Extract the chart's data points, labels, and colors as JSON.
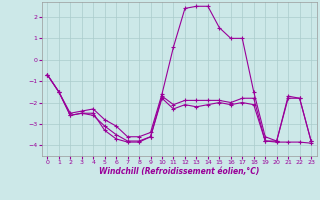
{
  "xlabel": "Windchill (Refroidissement éolien,°C)",
  "background_color": "#cce8e8",
  "grid_color": "#aacccc",
  "line_color": "#990099",
  "xlim": [
    -0.5,
    23.5
  ],
  "ylim": [
    -4.5,
    2.7
  ],
  "yticks": [
    -4,
    -3,
    -2,
    -1,
    0,
    1,
    2
  ],
  "xticks": [
    0,
    1,
    2,
    3,
    4,
    5,
    6,
    7,
    8,
    9,
    10,
    11,
    12,
    13,
    14,
    15,
    16,
    17,
    18,
    19,
    20,
    21,
    22,
    23
  ],
  "series1_x": [
    0,
    1,
    2,
    3,
    4,
    5,
    6,
    7,
    8,
    9,
    10,
    11,
    12,
    13,
    14,
    15,
    16,
    17,
    18,
    19,
    20,
    21,
    22,
    23
  ],
  "series1_y": [
    -0.7,
    -1.5,
    -2.6,
    -2.5,
    -2.6,
    -3.1,
    -3.5,
    -3.8,
    -3.8,
    -3.6,
    -1.7,
    -2.1,
    -1.9,
    -1.9,
    -1.9,
    -1.9,
    -2.0,
    -1.8,
    -1.8,
    -3.8,
    -3.8,
    -1.8,
    -1.8,
    -3.8
  ],
  "series2_x": [
    0,
    1,
    2,
    3,
    4,
    5,
    6,
    7,
    8,
    9,
    10,
    11,
    12,
    13,
    14,
    15,
    16,
    17,
    18,
    19,
    20,
    21,
    22,
    23
  ],
  "series2_y": [
    -0.7,
    -1.5,
    -2.6,
    -2.5,
    -2.5,
    -3.3,
    -3.7,
    -3.85,
    -3.85,
    -3.6,
    -1.8,
    -2.3,
    -2.1,
    -2.2,
    -2.1,
    -2.0,
    -2.1,
    -2.0,
    -2.1,
    -3.8,
    -3.85,
    -3.85,
    -3.85,
    -3.9
  ],
  "series3_x": [
    0,
    1,
    2,
    3,
    4,
    5,
    6,
    7,
    8,
    9,
    10,
    11,
    12,
    13,
    14,
    15,
    16,
    17,
    18,
    19,
    20,
    21,
    22,
    23
  ],
  "series3_y": [
    -0.7,
    -1.5,
    -2.5,
    -2.4,
    -2.3,
    -2.8,
    -3.1,
    -3.6,
    -3.6,
    -3.4,
    -1.6,
    0.6,
    2.4,
    2.5,
    2.5,
    1.5,
    1.0,
    1.0,
    -1.5,
    -3.6,
    -3.8,
    -1.7,
    -1.8,
    -3.8
  ]
}
